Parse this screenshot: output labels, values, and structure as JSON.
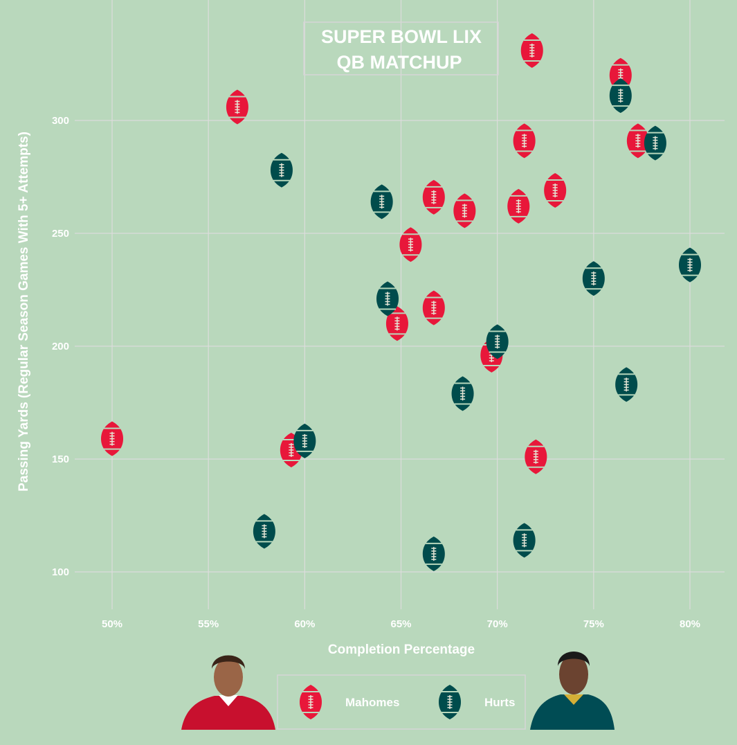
{
  "chart_data": {
    "type": "scatter",
    "title_lines": [
      "SUPER BOWL LIX",
      "QB MATCHUP"
    ],
    "xlabel": "Completion Percentage",
    "ylabel": "Passing Yards (Regular Season Games With 5+ Attempts)",
    "xlim": [
      48,
      82
    ],
    "ylim": [
      85,
      345
    ],
    "x_ticks": [
      50,
      55,
      60,
      65,
      70,
      75,
      80
    ],
    "x_tick_labels": [
      "50%",
      "55%",
      "60%",
      "65%",
      "70%",
      "75%",
      "80%"
    ],
    "y_ticks": [
      100,
      150,
      200,
      250,
      300
    ],
    "y_tick_labels": [
      "100",
      "150",
      "200",
      "250",
      "300"
    ],
    "grid": true,
    "legend_position": "bottom-center",
    "marker": "football",
    "background_color": "#b9d8bc",
    "series": [
      {
        "name": "Mahomes",
        "color": "#e8173a",
        "points": [
          [
            50.0,
            159
          ],
          [
            56.5,
            306
          ],
          [
            59.3,
            154
          ],
          [
            65.5,
            245
          ],
          [
            64.8,
            210
          ],
          [
            66.7,
            266
          ],
          [
            66.7,
            217
          ],
          [
            68.3,
            260
          ],
          [
            69.7,
            196
          ],
          [
            71.1,
            262
          ],
          [
            71.4,
            291
          ],
          [
            71.8,
            331
          ],
          [
            72.0,
            151
          ],
          [
            73.0,
            269
          ],
          [
            76.4,
            320
          ],
          [
            77.3,
            291
          ]
        ]
      },
      {
        "name": "Hurts",
        "color": "#004c4c",
        "points": [
          [
            58.8,
            278
          ],
          [
            57.9,
            118
          ],
          [
            60.0,
            158
          ],
          [
            64.0,
            264
          ],
          [
            64.3,
            221
          ],
          [
            66.7,
            108
          ],
          [
            68.2,
            179
          ],
          [
            70.0,
            202
          ],
          [
            71.4,
            114
          ],
          [
            75.0,
            230
          ],
          [
            76.4,
            311
          ],
          [
            76.7,
            183
          ],
          [
            78.2,
            290
          ],
          [
            80.0,
            236
          ]
        ]
      }
    ]
  }
}
